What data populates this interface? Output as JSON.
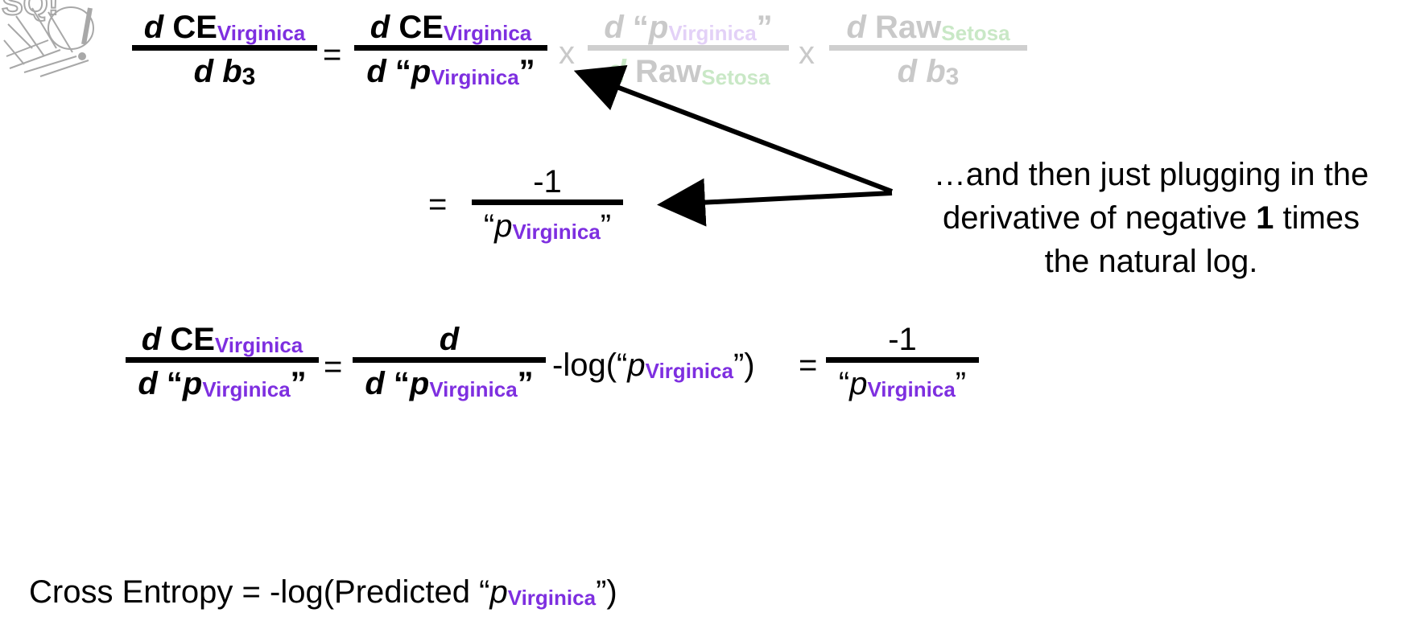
{
  "eq1": {
    "lhs": {
      "num_d": "d",
      "num_ce": "CE",
      "num_sub": "Virginica",
      "den_d": "d",
      "den_b": "b",
      "den_sub": "3"
    },
    "equals": "=",
    "t1": {
      "num_d": "d",
      "num_ce": "CE",
      "num_sub": "Virginica",
      "den_d": "d",
      "den_open": "“",
      "den_p": "p",
      "den_sub": "Virginica",
      "den_close": "”"
    },
    "times1": "x",
    "t2": {
      "num_d": "d",
      "num_open": "“",
      "num_p": "p",
      "num_sub": "Virginica",
      "num_close": "”",
      "den_d": "d",
      "den_raw": "Raw",
      "den_sub": "Setosa"
    },
    "times2": "x",
    "t3": {
      "num_d": "d",
      "num_raw": "Raw",
      "num_sub": "Setosa",
      "den_d": "d",
      "den_b": "b",
      "den_sub": "3"
    }
  },
  "eq2": {
    "equals": "=",
    "num": "-1",
    "den_open": "“",
    "den_p": "p",
    "den_sub": "Virginica",
    "den_close": "”"
  },
  "annotation": {
    "line1": "…and then just plugging in the",
    "line2_a": "derivative of negative ",
    "line2_bold": "1",
    "line2_b": " times",
    "line3": "the natural log."
  },
  "eq3": {
    "lhs": {
      "num_d": "d",
      "num_ce": "CE",
      "num_sub": "Virginica",
      "den_d": "d",
      "den_open": "“",
      "den_p": "p",
      "den_sub": "Virginica",
      "den_close": "”"
    },
    "equals1": "=",
    "mid": {
      "num_d": "d",
      "den_d": "d",
      "den_open": "“",
      "den_p": "p",
      "den_sub": "Virginica",
      "den_close": "”"
    },
    "log_prefix": "-log(“",
    "log_p": "p",
    "log_sub": "Virginica",
    "log_suffix": "”)",
    "equals2": "=",
    "rhs": {
      "num": "-1",
      "den_open": "“",
      "den_p": "p",
      "den_sub": "Virginica",
      "den_close": "”"
    }
  },
  "bottom": {
    "prefix": "Cross Entropy = -log(Predicted “",
    "p": "p",
    "sub": "Virginica",
    "suffix": "”)"
  },
  "colors": {
    "accent_purple": "#7e2fe0",
    "faded_gray": "#c9c9c9",
    "faded_green": "#c9e8c6",
    "faded_purple": "#e3d1f7"
  },
  "logo": {
    "text": "SQ!"
  }
}
